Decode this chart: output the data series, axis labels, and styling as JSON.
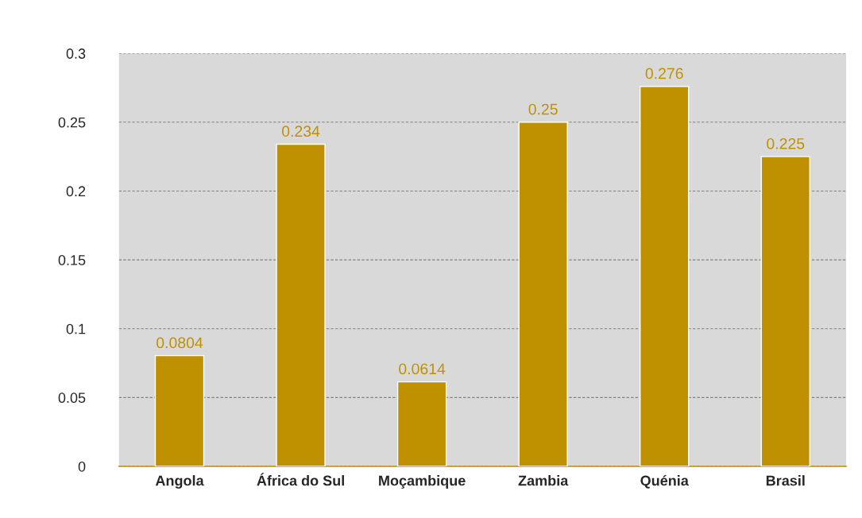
{
  "chart_data": {
    "type": "bar",
    "categories": [
      "Angola",
      "África do Sul",
      "Moçambique",
      "Zambia",
      "Quénia",
      "Brasil"
    ],
    "values": [
      0.0804,
      0.234,
      0.0614,
      0.25,
      0.276,
      0.225
    ],
    "color": "#bf9000",
    "ylim": [
      0,
      0.3
    ],
    "yticks": [
      0,
      0.05,
      0.1,
      0.15,
      0.2,
      0.25,
      0.3
    ],
    "grid": "y",
    "data_labels": true
  }
}
